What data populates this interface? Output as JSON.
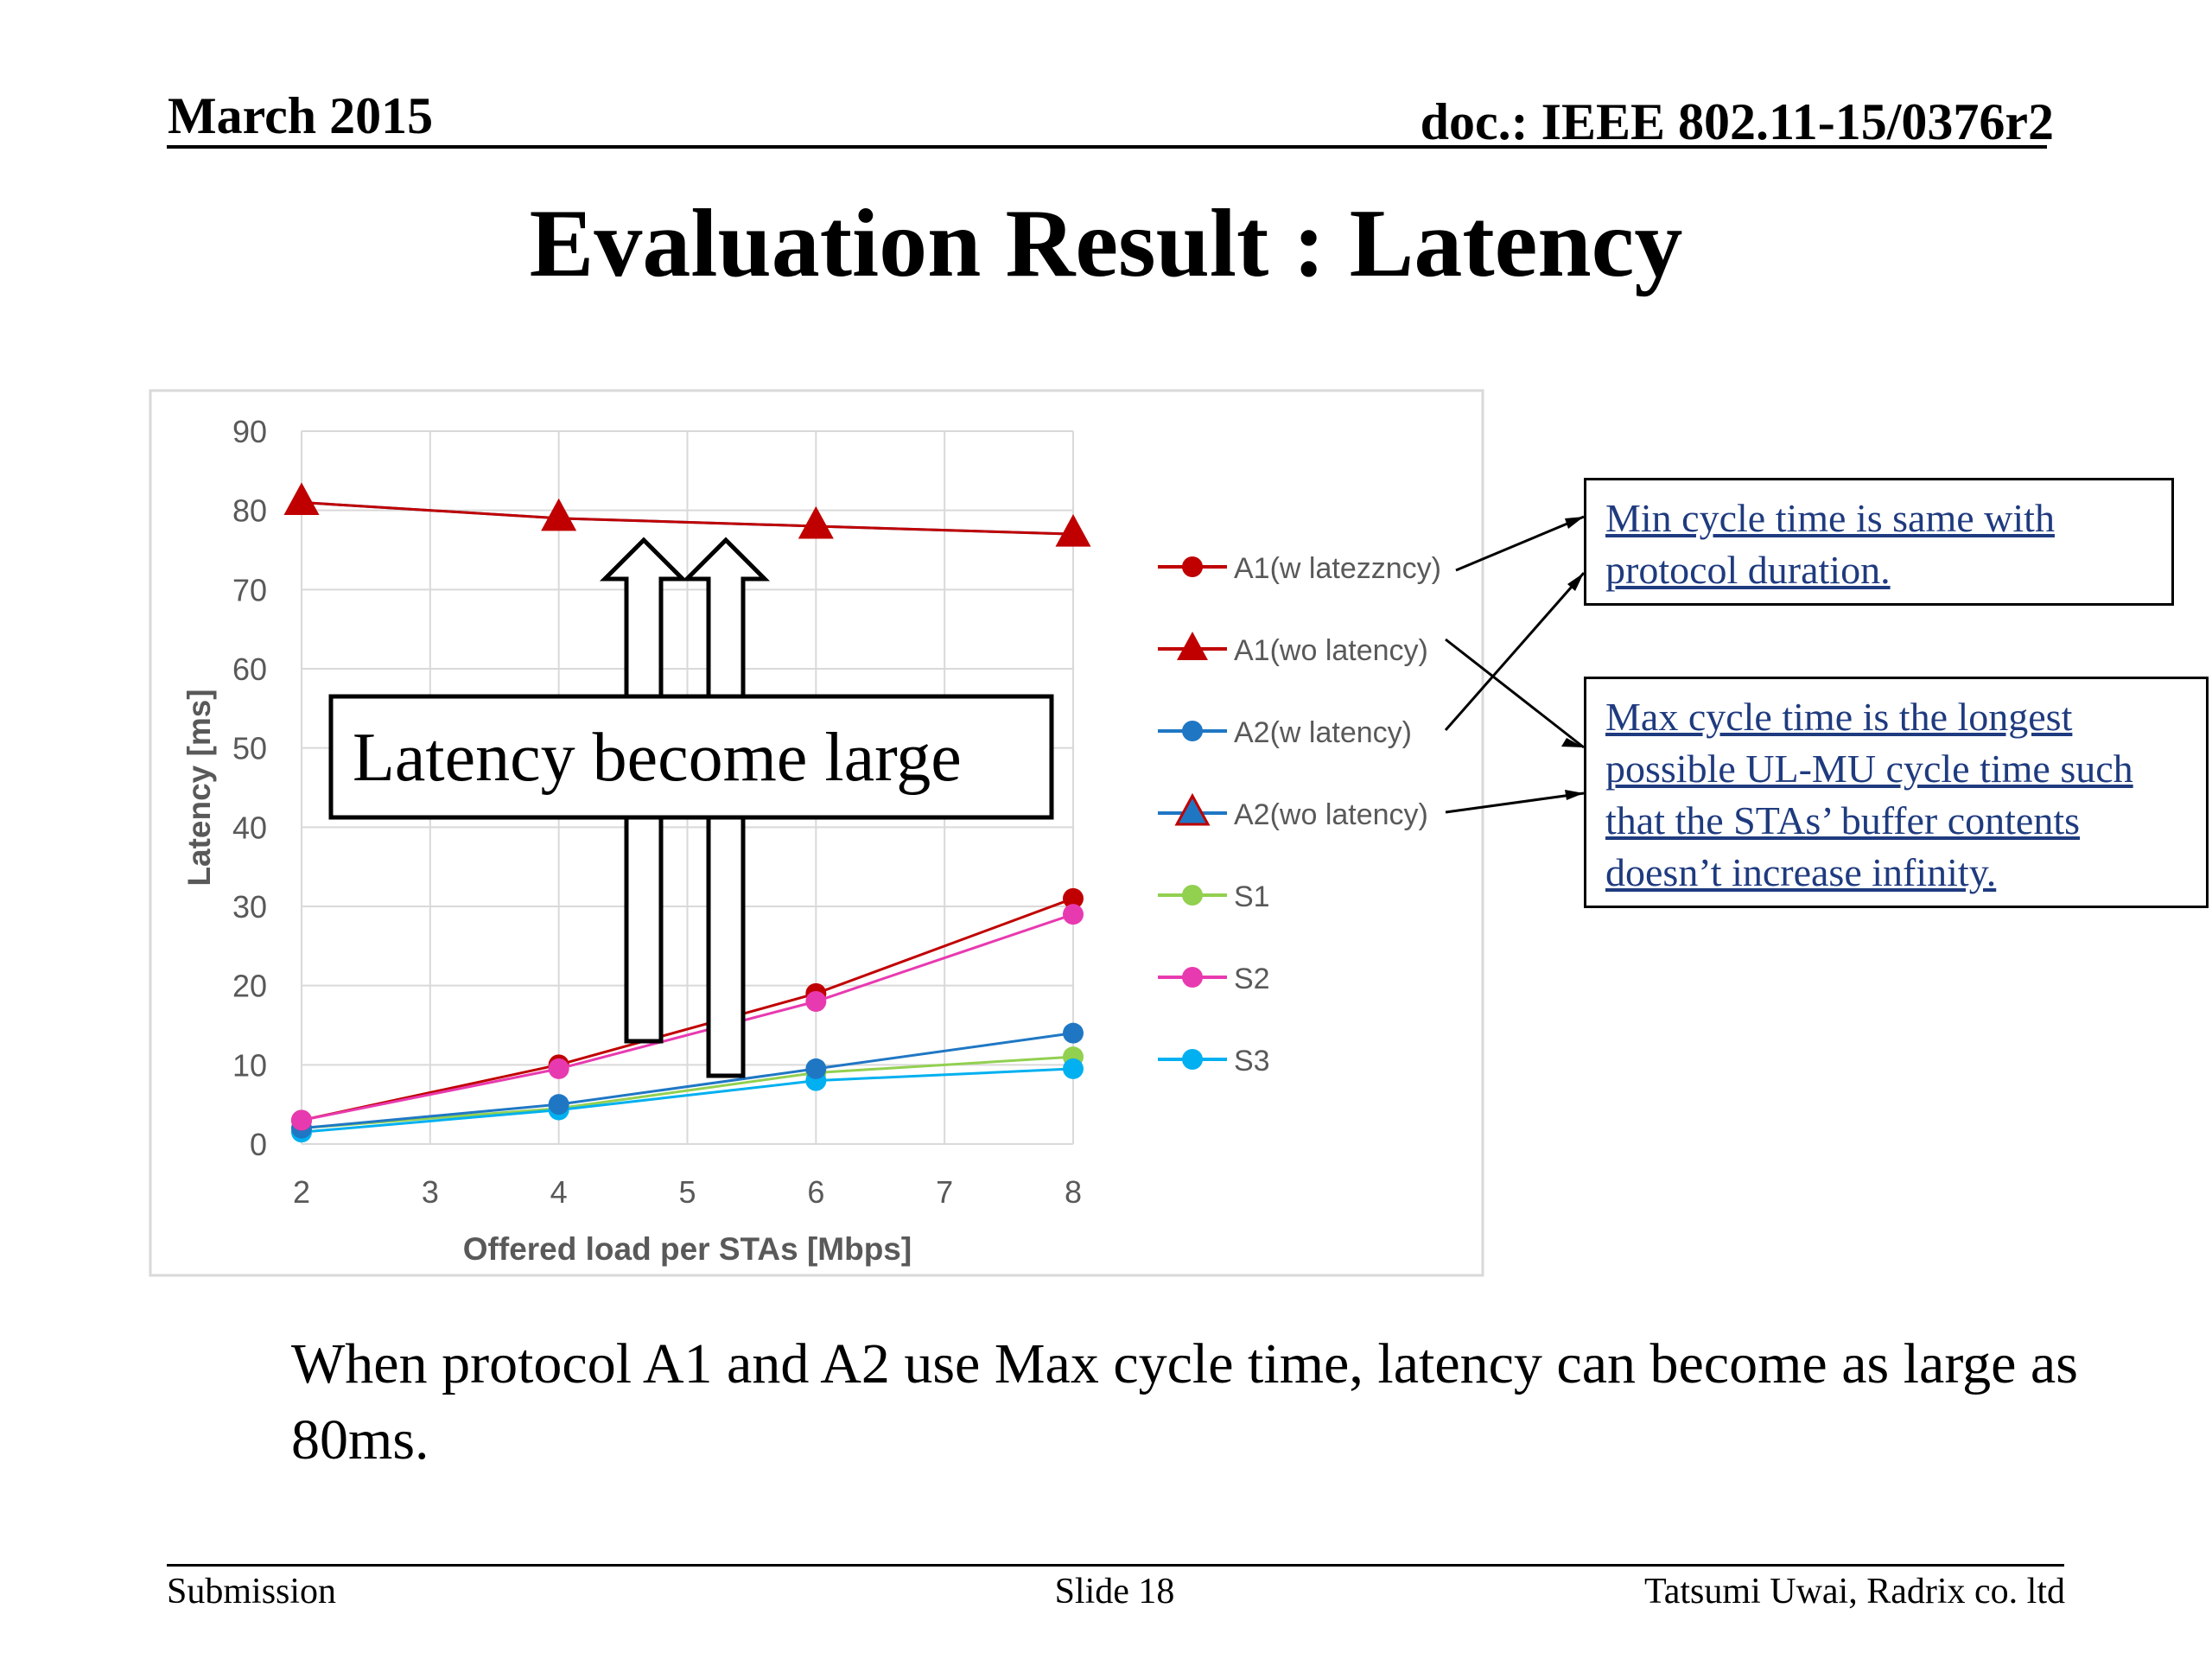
{
  "header": {
    "date": "March 2015",
    "doc": "doc.: IEEE 802.11-15/0376r2"
  },
  "title": "Evaluation Result : Latency",
  "annotation_box": "Latency become large",
  "callouts": {
    "min": "Min cycle time is same with protocol duration.",
    "max": "Max cycle time is the longest possible UL-MU cycle time such that  the STAs’ buffer contents doesn’t increase infinity."
  },
  "body_text": "When protocol A1 and A2 use Max cycle time, latency can become as large as 80ms.",
  "footer": {
    "left": "Submission",
    "center": "Slide 18",
    "right": "Tatsumi Uwai, Radrix co. ltd"
  },
  "chart_data": {
    "type": "line",
    "xlabel": "Offered load per STAs [Mbps]",
    "ylabel": "Latency [ms]",
    "xlim": [
      2,
      8
    ],
    "ylim": [
      0,
      90
    ],
    "xticks": [
      "2",
      "3",
      "4",
      "5",
      "6",
      "7",
      "8"
    ],
    "yticks": [
      "0",
      "10",
      "20",
      "30",
      "40",
      "50",
      "60",
      "70",
      "80",
      "90"
    ],
    "x": [
      2,
      4,
      6,
      8
    ],
    "grid": true,
    "legend_position": "right",
    "series": [
      {
        "name": "A1(w latezzncy)",
        "values": [
          3,
          10,
          19,
          31
        ],
        "color": "#c00000",
        "marker": "circle"
      },
      {
        "name": "A1(wo latency)",
        "values": [
          81,
          79,
          78,
          77
        ],
        "color": "#c00000",
        "marker": "triangle"
      },
      {
        "name": "A2(w latency)",
        "values": [
          2,
          5,
          9.5,
          14
        ],
        "color": "#1f77c4",
        "marker": "circle"
      },
      {
        "name": "A2(wo latency)",
        "values": [
          81,
          79,
          78,
          77
        ],
        "color": "#1f77c4",
        "marker": "triangle"
      },
      {
        "name": "S1",
        "values": [
          2,
          4.5,
          9,
          11
        ],
        "color": "#92d050",
        "marker": "circle"
      },
      {
        "name": "S2",
        "values": [
          3,
          9.5,
          18,
          29
        ],
        "color": "#e83ab0",
        "marker": "circle"
      },
      {
        "name": "S3",
        "values": [
          1.5,
          4.3,
          8,
          9.5
        ],
        "color": "#00b0f0",
        "marker": "circle"
      }
    ]
  }
}
